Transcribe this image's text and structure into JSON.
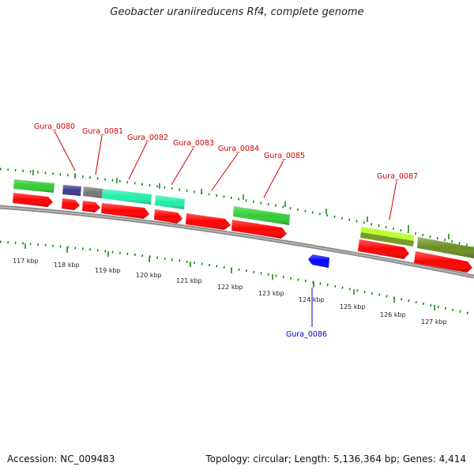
{
  "title": "Geobacter uraniireducens Rf4, complete genome",
  "accession": "Accession: NC_009483",
  "summary": "Topology: circular; Length: 5,136,364 bp; Genes: 4,414",
  "kbp_labels": [
    "117 kbp",
    "118 kbp",
    "119 kbp",
    "120 kbp",
    "121 kbp",
    "122 kbp",
    "123 kbp",
    "124 kbp",
    "125 kbp",
    "126 kbp",
    "127 kbp"
  ],
  "gene_labels": {
    "g0080": "Gura_0080",
    "g0081": "Gura_0081",
    "g0082": "Gura_0082",
    "g0083": "Gura_0083",
    "g0084": "Gura_0084",
    "g0085": "Gura_0085",
    "g0086": "Gura_0086",
    "g0087": "Gura_0087"
  },
  "colors": {
    "cds": "#ff0000",
    "green": "#33cc33",
    "navy": "#3b3b8f",
    "gray": "#777777",
    "aqua": "#22eeaa",
    "lime": "#bbff33",
    "olive": "#6b8e23",
    "blue": "#0000ff",
    "label_red": "#cc0000",
    "label_blue": "#0000cc",
    "tick": "#008800",
    "backbone": "#888888"
  }
}
